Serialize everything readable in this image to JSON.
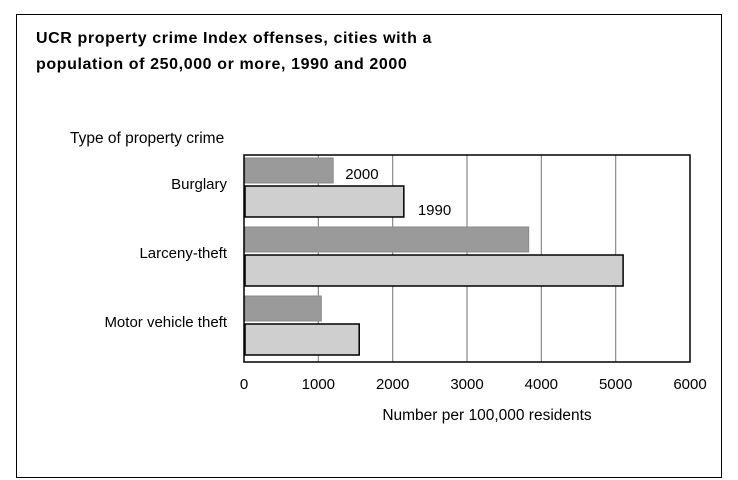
{
  "chart_data": {
    "type": "bar",
    "orientation": "horizontal",
    "title_lines": [
      "UCR property crime Index offenses, cities with a",
      "population of 250,000 or more, 1990 and 2000"
    ],
    "ylabel": "Type of property crime",
    "xlabel": "Number per 100,000 residents",
    "categories": [
      "Burglary",
      "Larceny-theft",
      "Motor vehicle theft"
    ],
    "series": [
      {
        "name": "2000",
        "values": [
          1200,
          3830,
          1040
        ],
        "color": "#9a9a9a"
      },
      {
        "name": "1990",
        "values": [
          2150,
          5100,
          1550
        ],
        "color": "#cfcfcf"
      }
    ],
    "xlim": [
      0,
      6000
    ],
    "xticks": [
      0,
      1000,
      2000,
      3000,
      4000,
      5000,
      6000
    ],
    "grid": true,
    "legend": "inline labels next to Burglary bars"
  }
}
